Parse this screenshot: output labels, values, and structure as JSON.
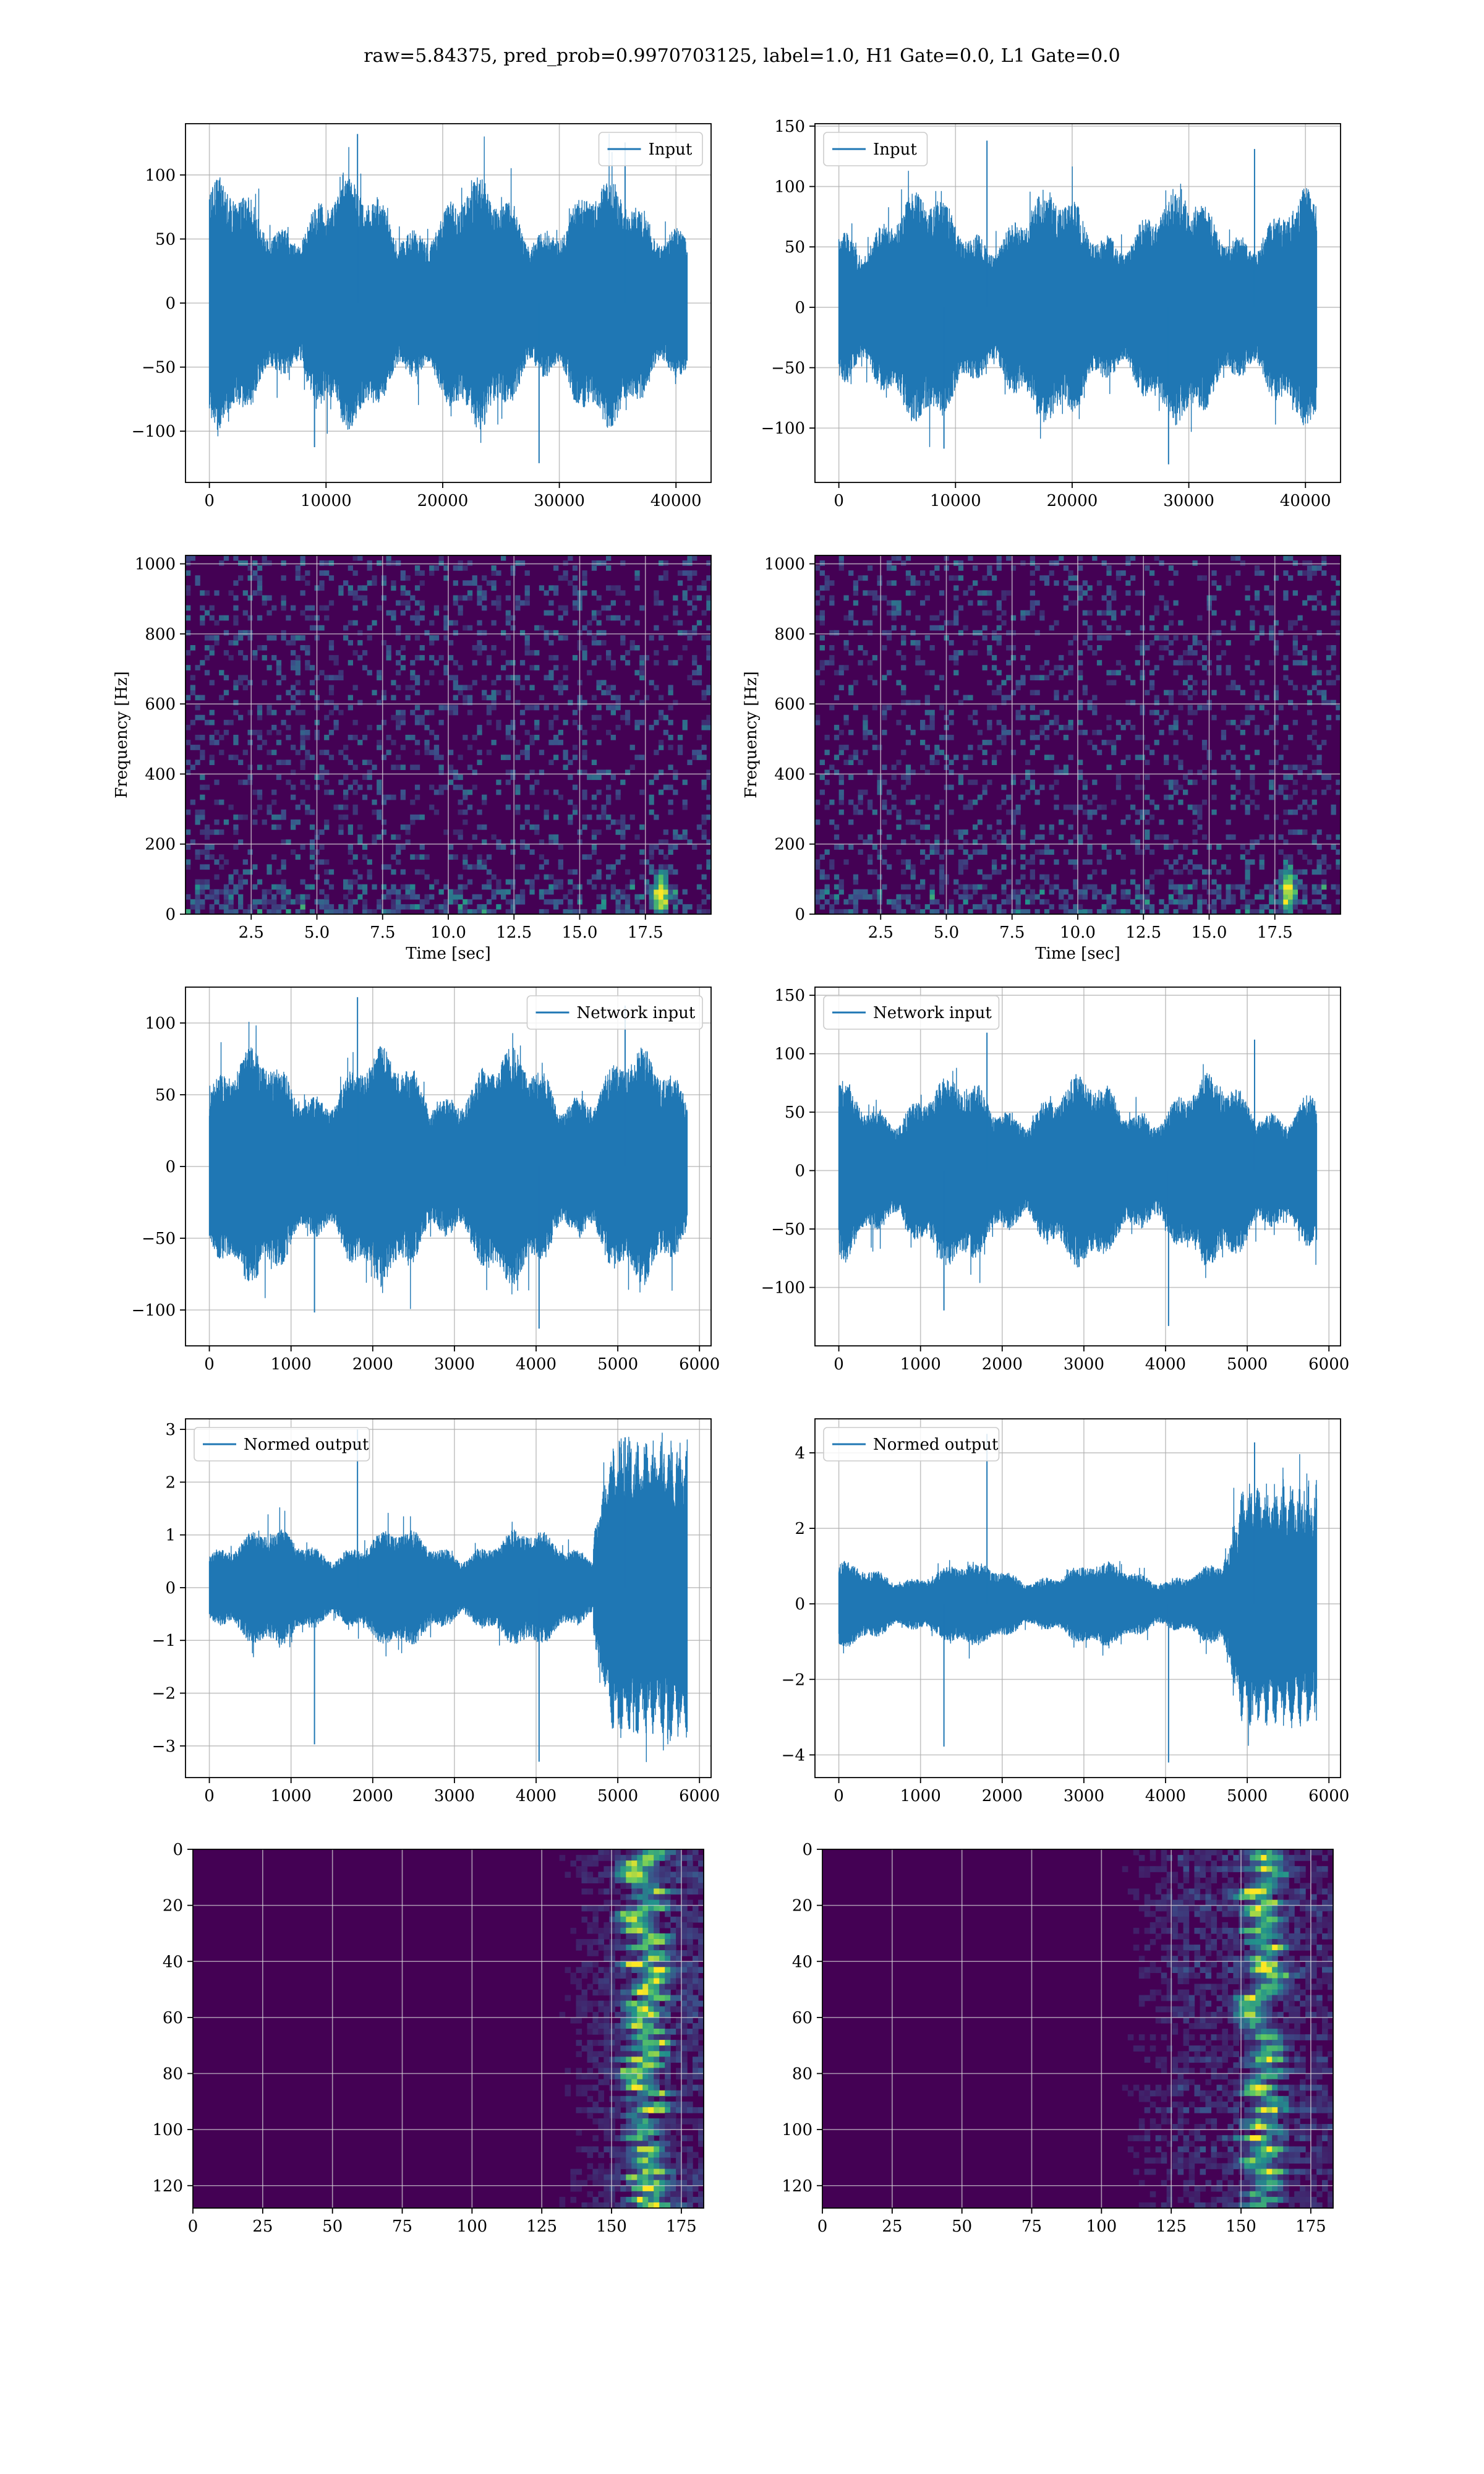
{
  "figure": {
    "title": "raw=5.84375, pred_prob=0.9970703125, label=1.0, H1 Gate=0.0, L1 Gate=0.0"
  },
  "colors": {
    "line": "#1f77b4",
    "grid": "#b0b0b0",
    "viridis_dark": "#440154",
    "viridis_mid": "#3b528b",
    "viridis_teal": "#21918c",
    "viridis_green": "#5ec962",
    "viridis_yellow": "#fde725"
  },
  "chart_data": [
    {
      "id": "input-h1",
      "type": "line",
      "legend": "Input",
      "legend_pos": "top-right",
      "x_range": [
        0,
        40960
      ],
      "xlim": [
        -2048,
        43008
      ],
      "ylim": [
        -140,
        140
      ],
      "xticks": [
        0,
        10000,
        20000,
        30000,
        40000
      ],
      "xtick_labels": [
        "0",
        "10000",
        "20000",
        "30000",
        "40000"
      ],
      "yticks": [
        -100,
        -50,
        0,
        50,
        100
      ],
      "ytick_labels": [
        "−100",
        "−50",
        "0",
        "50",
        "100"
      ],
      "amplitude": 65,
      "peak_max": 132,
      "peak_min": -125,
      "grid": true
    },
    {
      "id": "input-l1",
      "type": "line",
      "legend": "Input",
      "legend_pos": "top-left",
      "x_range": [
        0,
        40960
      ],
      "xlim": [
        -2048,
        43008
      ],
      "ylim": [
        -145,
        152
      ],
      "xticks": [
        0,
        10000,
        20000,
        30000,
        40000
      ],
      "xtick_labels": [
        "0",
        "10000",
        "20000",
        "30000",
        "40000"
      ],
      "yticks": [
        -100,
        -50,
        0,
        50,
        100,
        150
      ],
      "ytick_labels": [
        "−100",
        "−50",
        "0",
        "50",
        "100",
        "150"
      ],
      "amplitude": 65,
      "peak_max": 138,
      "peak_min": -130,
      "grid": true
    },
    {
      "id": "spec-h1",
      "type": "heatmap",
      "xlabel": "Time [sec]",
      "ylabel": "Frequency [Hz]",
      "xlim": [
        0,
        20
      ],
      "ylim": [
        0,
        1024
      ],
      "xticks": [
        2.5,
        5.0,
        7.5,
        10.0,
        12.5,
        15.0,
        17.5
      ],
      "xtick_labels": [
        "2.5",
        "5.0",
        "7.5",
        "10.0",
        "12.5",
        "15.0",
        "17.5"
      ],
      "yticks": [
        0,
        200,
        400,
        600,
        800,
        1000
      ],
      "ytick_labels": [
        "0",
        "200",
        "400",
        "600",
        "800",
        "1000"
      ],
      "hot_spot": {
        "time": 18.1,
        "freq": 60
      },
      "grid": true
    },
    {
      "id": "spec-l1",
      "type": "heatmap",
      "xlabel": "Time [sec]",
      "ylabel": "Frequency [Hz]",
      "xlim": [
        0,
        20
      ],
      "ylim": [
        0,
        1024
      ],
      "xticks": [
        2.5,
        5.0,
        7.5,
        10.0,
        12.5,
        15.0,
        17.5
      ],
      "xtick_labels": [
        "2.5",
        "5.0",
        "7.5",
        "10.0",
        "12.5",
        "15.0",
        "17.5"
      ],
      "yticks": [
        0,
        200,
        400,
        600,
        800,
        1000
      ],
      "ytick_labels": [
        "0",
        "200",
        "400",
        "600",
        "800",
        "1000"
      ],
      "hot_spot": {
        "time": 18.0,
        "freq": 70
      },
      "grid": true
    },
    {
      "id": "net-h1",
      "type": "line",
      "legend": "Network input",
      "legend_pos": "top-right",
      "x_range": [
        0,
        5850
      ],
      "xlim": [
        -292,
        6142
      ],
      "ylim": [
        -125,
        125
      ],
      "xticks": [
        0,
        1000,
        2000,
        3000,
        4000,
        5000,
        6000
      ],
      "xtick_labels": [
        "0",
        "1000",
        "2000",
        "3000",
        "4000",
        "5000",
        "6000"
      ],
      "yticks": [
        -100,
        -50,
        0,
        50,
        100
      ],
      "ytick_labels": [
        "−100",
        "−50",
        "0",
        "50",
        "100"
      ],
      "amplitude": 55,
      "peak_max": 118,
      "peak_min": -113,
      "grid": true
    },
    {
      "id": "net-l1",
      "type": "line",
      "legend": "Network input",
      "legend_pos": "top-left",
      "x_range": [
        0,
        5850
      ],
      "xlim": [
        -292,
        6142
      ],
      "ylim": [
        -150,
        157
      ],
      "xticks": [
        0,
        1000,
        2000,
        3000,
        4000,
        5000,
        6000
      ],
      "xtick_labels": [
        "0",
        "1000",
        "2000",
        "3000",
        "4000",
        "5000",
        "6000"
      ],
      "yticks": [
        -100,
        -50,
        0,
        50,
        100,
        150
      ],
      "ytick_labels": [
        "−100",
        "−50",
        "0",
        "50",
        "100",
        "150"
      ],
      "amplitude": 55,
      "peak_max": 118,
      "peak_min": -133,
      "grid": true
    },
    {
      "id": "norm-h1",
      "type": "line",
      "legend": "Normed output",
      "legend_pos": "top-left",
      "x_range": [
        0,
        5850
      ],
      "xlim": [
        -292,
        6142
      ],
      "ylim": [
        -3.6,
        3.2
      ],
      "xticks": [
        0,
        1000,
        2000,
        3000,
        4000,
        5000,
        6000
      ],
      "xtick_labels": [
        "0",
        "1000",
        "2000",
        "3000",
        "4000",
        "5000",
        "6000"
      ],
      "yticks": [
        -3,
        -2,
        -1,
        0,
        1,
        2,
        3
      ],
      "ytick_labels": [
        "−3",
        "−2",
        "−1",
        "0",
        "1",
        "2",
        "3"
      ],
      "amplitude": 0.75,
      "burst_start": 4700,
      "burst_amplitude": 2.3,
      "peak_max": 3.0,
      "peak_min": -3.3,
      "grid": true
    },
    {
      "id": "norm-l1",
      "type": "line",
      "legend": "Normed output",
      "legend_pos": "top-left",
      "x_range": [
        0,
        5850
      ],
      "xlim": [
        -292,
        6142
      ],
      "ylim": [
        -4.6,
        4.9
      ],
      "xticks": [
        0,
        1000,
        2000,
        3000,
        4000,
        5000,
        6000
      ],
      "xtick_labels": [
        "0",
        "1000",
        "2000",
        "3000",
        "4000",
        "5000",
        "6000"
      ],
      "yticks": [
        -4,
        -2,
        0,
        2,
        4
      ],
      "ytick_labels": [
        "−4",
        "−2",
        "0",
        "2",
        "4"
      ],
      "amplitude": 0.75,
      "burst_start": 4700,
      "burst_amplitude": 2.6,
      "peak_max": 4.5,
      "peak_min": -4.2,
      "grid": true
    },
    {
      "id": "feat-h1",
      "type": "heatmap",
      "rows": 128,
      "cols": 183,
      "xlim": [
        0,
        183
      ],
      "ylim": [
        128,
        0
      ],
      "xticks": [
        0,
        25,
        50,
        75,
        100,
        125,
        150,
        175
      ],
      "xtick_labels": [
        "0",
        "25",
        "50",
        "75",
        "100",
        "125",
        "150",
        "175"
      ],
      "yticks": [
        0,
        20,
        40,
        60,
        80,
        100,
        120
      ],
      "ytick_labels": [
        "0",
        "20",
        "40",
        "60",
        "80",
        "100",
        "120"
      ],
      "active_from_col": 125,
      "peak_col": 162,
      "grid": true
    },
    {
      "id": "feat-l1",
      "type": "heatmap",
      "rows": 128,
      "cols": 183,
      "xlim": [
        0,
        183
      ],
      "ylim": [
        128,
        0
      ],
      "xticks": [
        0,
        25,
        50,
        75,
        100,
        125,
        150,
        175
      ],
      "xtick_labels": [
        "0",
        "25",
        "50",
        "75",
        "100",
        "125",
        "150",
        "175"
      ],
      "yticks": [
        0,
        20,
        40,
        60,
        80,
        100,
        120
      ],
      "ytick_labels": [
        "0",
        "20",
        "40",
        "60",
        "80",
        "100",
        "120"
      ],
      "active_from_col": 100,
      "peak_col": 158,
      "grid": true
    }
  ]
}
